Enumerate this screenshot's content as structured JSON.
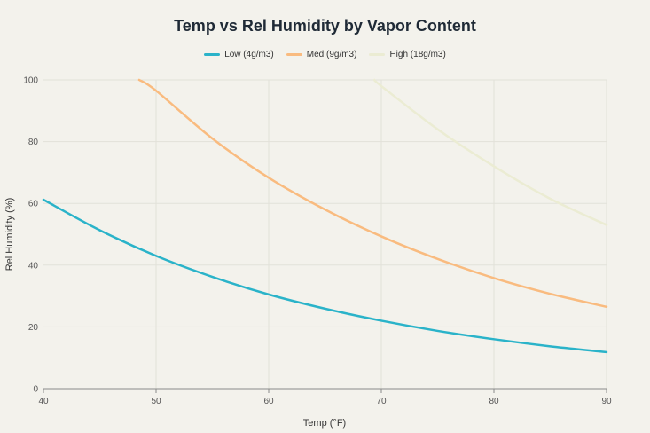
{
  "chart_data": {
    "type": "line",
    "title": "Temp vs Rel Humidity by Vapor Content",
    "xlabel": "Temp (°F)",
    "ylabel": "Rel Humidity (%)",
    "xlim": [
      40,
      90
    ],
    "ylim": [
      0,
      100
    ],
    "xticks": [
      40,
      50,
      60,
      70,
      80,
      90
    ],
    "yticks": [
      0,
      20,
      40,
      60,
      80,
      100
    ],
    "grid": true,
    "legend_position": "top-center",
    "series": [
      {
        "name": "Low (4g/m3)",
        "color": "#2ab3c9",
        "x": [
          40,
          45,
          50,
          55,
          60,
          65,
          70,
          75,
          80,
          85,
          90
        ],
        "y": [
          61.2,
          51.3,
          43.0,
          36.2,
          30.5,
          25.9,
          22.0,
          18.7,
          16.0,
          13.7,
          11.8
        ]
      },
      {
        "name": "Med (9g/m3)",
        "color": "#f9bb7f",
        "x": [
          48.5,
          50,
          55,
          60,
          65,
          70,
          75,
          80,
          85,
          90
        ],
        "y": [
          100,
          96.5,
          81.0,
          68.3,
          58.0,
          49.3,
          42.0,
          35.8,
          30.7,
          26.5
        ]
      },
      {
        "name": "High (18g/m3)",
        "color": "#ebecd3",
        "x": [
          69.4,
          70,
          75,
          80,
          85,
          90
        ],
        "y": [
          100,
          98.0,
          84.0,
          72.0,
          61.5,
          53.0
        ]
      }
    ]
  }
}
